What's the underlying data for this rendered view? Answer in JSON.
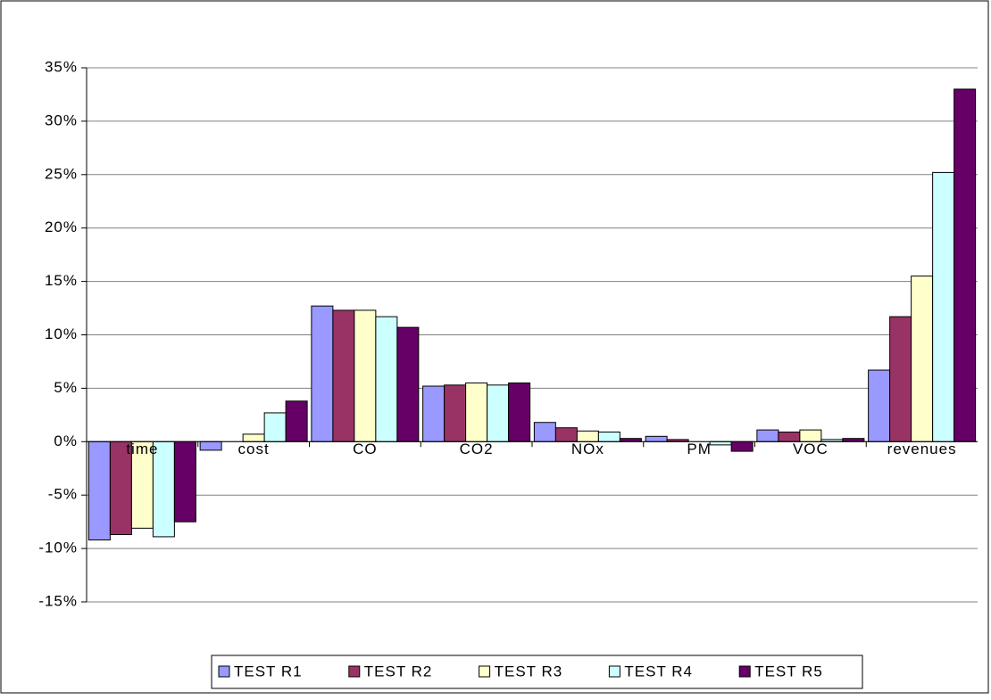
{
  "chart_data": {
    "type": "bar",
    "categories": [
      "time",
      "cost",
      "CO",
      "CO2",
      "NOx",
      "PM",
      "VOC",
      "revenues"
    ],
    "series": [
      {
        "name": "TEST R1",
        "color": "#9999ff",
        "values": [
          -9.2,
          -0.8,
          12.7,
          5.2,
          1.8,
          0.5,
          1.1,
          6.7
        ]
      },
      {
        "name": "TEST R2",
        "color": "#993366",
        "values": [
          -8.7,
          0,
          12.3,
          5.3,
          1.3,
          0.2,
          0.9,
          11.7
        ]
      },
      {
        "name": "TEST R3",
        "color": "#ffffcc",
        "values": [
          -8.1,
          0.7,
          12.3,
          5.5,
          1.0,
          0,
          1.1,
          15.5
        ]
      },
      {
        "name": "TEST R4",
        "color": "#ccffff",
        "values": [
          -8.9,
          2.7,
          11.7,
          5.3,
          0.9,
          -0.3,
          0.2,
          25.2
        ]
      },
      {
        "name": "TEST R5",
        "color": "#660066",
        "values": [
          -7.5,
          3.8,
          10.7,
          5.5,
          0.3,
          -0.9,
          0.3,
          33.0
        ]
      }
    ],
    "ylim": [
      -15,
      35
    ],
    "yticks": [
      {
        "value": -15,
        "label": "-15%"
      },
      {
        "value": -10,
        "label": "-10%"
      },
      {
        "value": -5,
        "label": "-5%"
      },
      {
        "value": 0,
        "label": "0%"
      },
      {
        "value": 5,
        "label": "5%"
      },
      {
        "value": 10,
        "label": "10%"
      },
      {
        "value": 15,
        "label": "15%"
      },
      {
        "value": 20,
        "label": "20%"
      },
      {
        "value": 25,
        "label": "25%"
      },
      {
        "value": 30,
        "label": "30%"
      },
      {
        "value": 35,
        "label": "35%"
      }
    ],
    "grid": true,
    "legend": "bottom"
  }
}
